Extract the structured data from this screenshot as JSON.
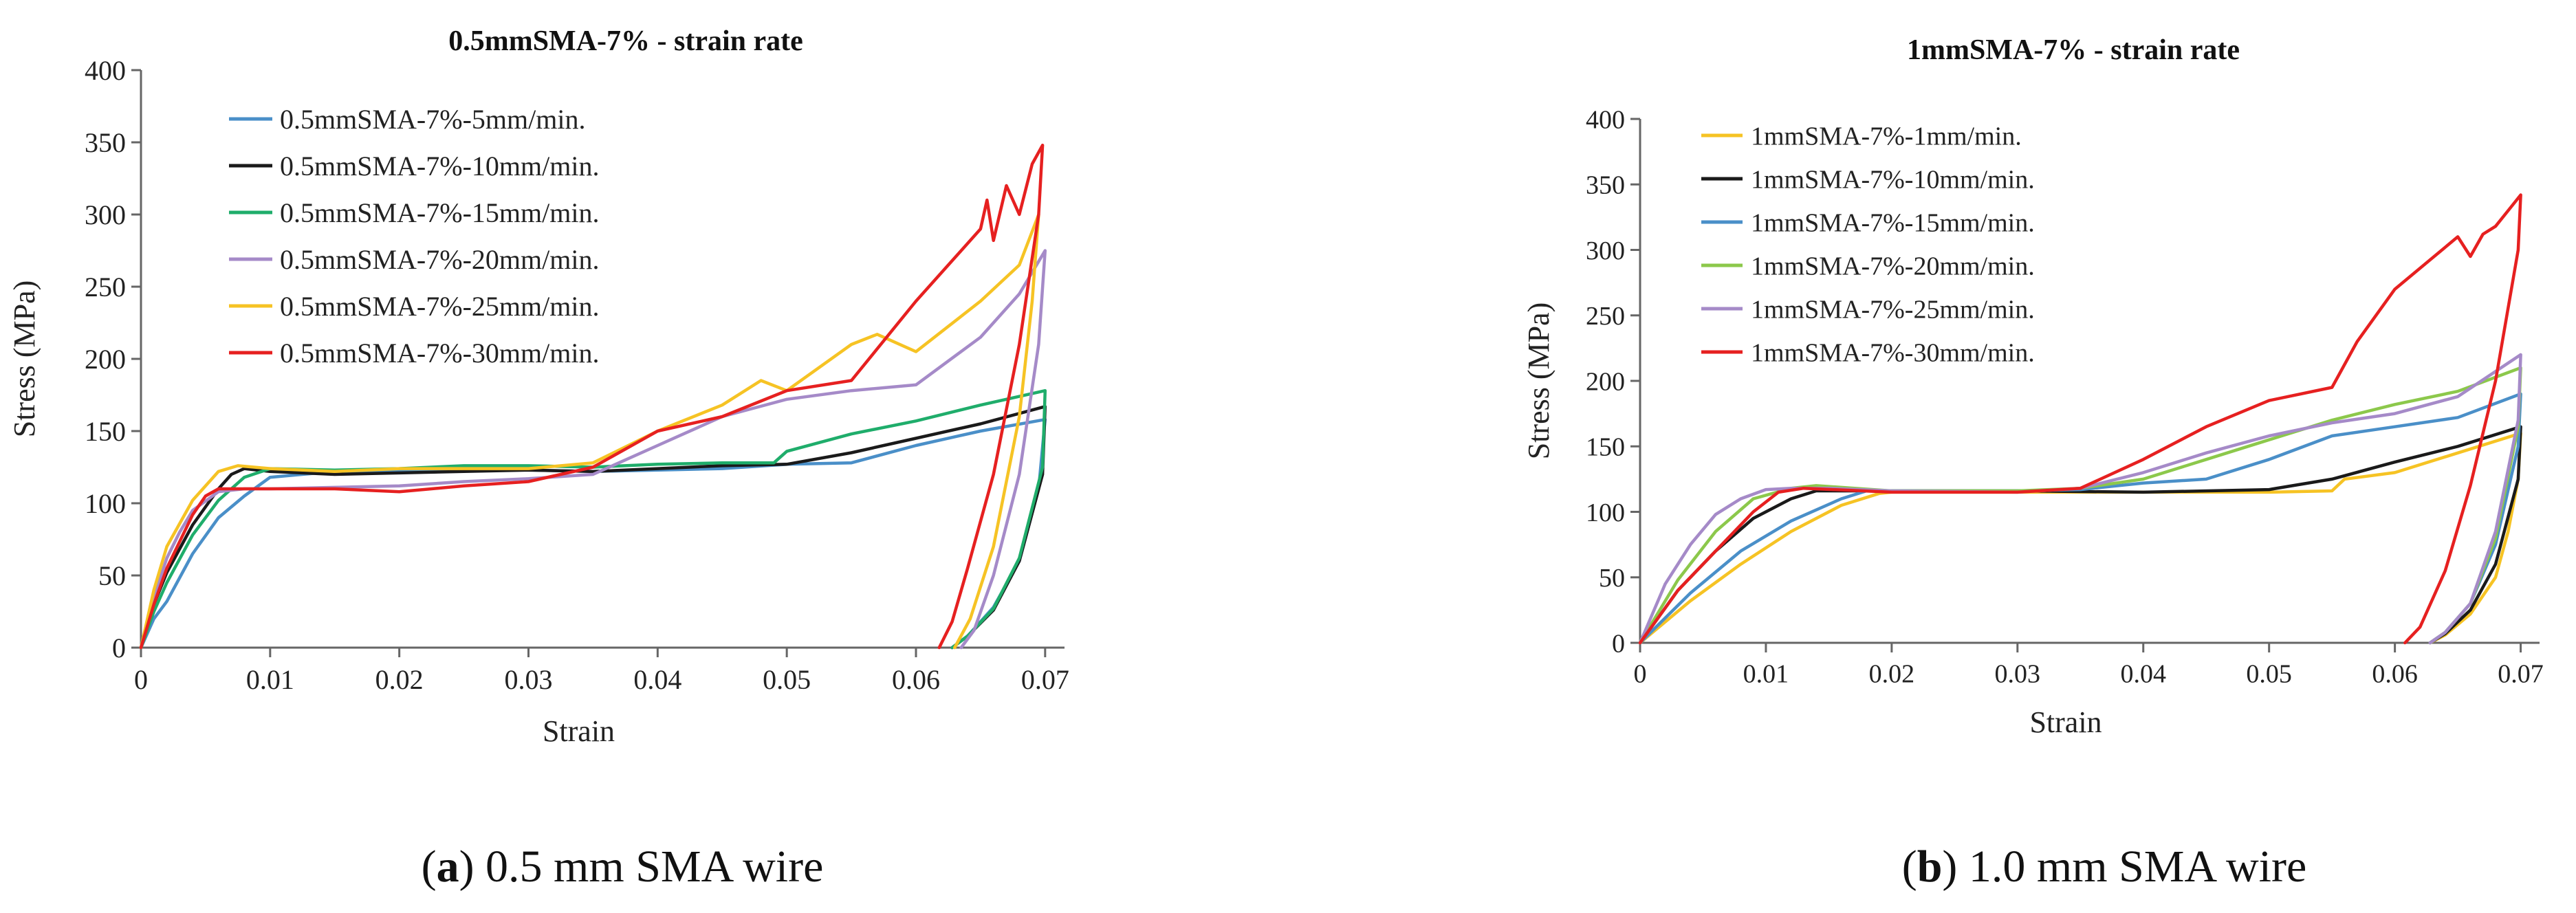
{
  "chart_data": [
    {
      "type": "line",
      "title": "0.5mmSMA-7% - strain rate",
      "xlabel": "Strain",
      "ylabel": "Stress (MPa)",
      "xlim": [
        0,
        0.0715
      ],
      "ylim": [
        0,
        400
      ],
      "xticks": [
        "0",
        "0.01",
        "0.02",
        "0.03",
        "0.04",
        "0.05",
        "0.06",
        "0.07"
      ],
      "yticks": [
        "0",
        "50",
        "100",
        "150",
        "200",
        "250",
        "300",
        "350",
        "400"
      ],
      "legend_position": "top-left inside",
      "grid": false,
      "caption_bold": "a",
      "caption_rest": " 0.5 mm SMA wire",
      "series": [
        {
          "name": "0.5mmSMA-7%-5mm/min.",
          "color": "#4a8fc8",
          "x": [
            0,
            0.001,
            0.002,
            0.004,
            0.006,
            0.008,
            0.01,
            0.015,
            0.02,
            0.025,
            0.03,
            0.035,
            0.04,
            0.045,
            0.05,
            0.055,
            0.06,
            0.065,
            0.07,
            0.0695,
            0.068,
            0.066,
            0.064,
            0.0628
          ],
          "y": [
            0,
            20,
            32,
            65,
            90,
            105,
            118,
            122,
            123,
            124,
            123,
            122,
            123,
            124,
            127,
            128,
            140,
            150,
            158,
            110,
            60,
            28,
            8,
            0
          ]
        },
        {
          "name": "0.5mmSMA-7%-10mm/min.",
          "color": "#1a1a1a",
          "x": [
            0,
            0.001,
            0.002,
            0.004,
            0.006,
            0.007,
            0.008,
            0.01,
            0.015,
            0.02,
            0.025,
            0.03,
            0.035,
            0.04,
            0.045,
            0.05,
            0.055,
            0.06,
            0.065,
            0.07,
            0.0698,
            0.068,
            0.066,
            0.064,
            0.0628
          ],
          "y": [
            0,
            30,
            52,
            85,
            110,
            120,
            124,
            122,
            120,
            121,
            122,
            123,
            122,
            124,
            126,
            127,
            135,
            145,
            155,
            167,
            120,
            60,
            26,
            8,
            0
          ]
        },
        {
          "name": "0.5mmSMA-7%-15mm/min.",
          "color": "#1fad6b",
          "x": [
            0,
            0.001,
            0.002,
            0.004,
            0.006,
            0.008,
            0.01,
            0.015,
            0.02,
            0.025,
            0.03,
            0.035,
            0.04,
            0.045,
            0.049,
            0.05,
            0.055,
            0.06,
            0.065,
            0.07,
            0.0698,
            0.068,
            0.066,
            0.064,
            0.0628
          ],
          "y": [
            0,
            25,
            45,
            78,
            102,
            118,
            124,
            123,
            124,
            126,
            126,
            125,
            127,
            128,
            128,
            136,
            148,
            157,
            168,
            178,
            125,
            62,
            27,
            8,
            0
          ]
        },
        {
          "name": "0.5mmSMA-7%-20mm/min.",
          "color": "#a58ac8",
          "x": [
            0,
            0.001,
            0.002,
            0.003,
            0.004,
            0.006,
            0.008,
            0.01,
            0.015,
            0.02,
            0.025,
            0.03,
            0.035,
            0.04,
            0.045,
            0.05,
            0.055,
            0.06,
            0.065,
            0.068,
            0.07,
            0.0695,
            0.068,
            0.066,
            0.0645,
            0.0635
          ],
          "y": [
            0,
            35,
            62,
            80,
            95,
            108,
            110,
            110,
            111,
            112,
            115,
            117,
            120,
            140,
            160,
            172,
            178,
            182,
            215,
            245,
            275,
            210,
            120,
            50,
            12,
            0
          ]
        },
        {
          "name": "0.5mmSMA-7%-25mm/min.",
          "color": "#f6c324",
          "x": [
            0,
            0.001,
            0.002,
            0.004,
            0.006,
            0.0075,
            0.01,
            0.015,
            0.02,
            0.025,
            0.03,
            0.035,
            0.04,
            0.045,
            0.048,
            0.05,
            0.055,
            0.057,
            0.06,
            0.065,
            0.068,
            0.0695,
            0.069,
            0.068,
            0.066,
            0.0642,
            0.063
          ],
          "y": [
            0,
            40,
            70,
            102,
            122,
            126,
            124,
            122,
            124,
            124,
            124,
            128,
            150,
            168,
            185,
            178,
            210,
            217,
            205,
            240,
            265,
            300,
            240,
            160,
            70,
            20,
            0
          ]
        },
        {
          "name": "0.5mmSMA-7%-30mm/min.",
          "color": "#e62020",
          "x": [
            0,
            0.001,
            0.002,
            0.004,
            0.005,
            0.006,
            0.01,
            0.015,
            0.02,
            0.025,
            0.03,
            0.035,
            0.04,
            0.045,
            0.05,
            0.055,
            0.06,
            0.065,
            0.0655,
            0.066,
            0.067,
            0.068,
            0.069,
            0.0698,
            0.0695,
            0.068,
            0.066,
            0.064,
            0.0628,
            0.0618
          ],
          "y": [
            0,
            30,
            55,
            92,
            105,
            110,
            110,
            110,
            108,
            112,
            115,
            125,
            150,
            160,
            178,
            185,
            240,
            290,
            310,
            282,
            320,
            300,
            335,
            348,
            300,
            210,
            120,
            55,
            18,
            0
          ]
        }
      ]
    },
    {
      "type": "line",
      "title": "1mmSMA-7% - strain rate",
      "xlabel": "Strain",
      "ylabel": "Stress (MPa)",
      "xlim": [
        0,
        0.0715
      ],
      "ylim": [
        0,
        400
      ],
      "xticks": [
        "0",
        "0.01",
        "0.02",
        "0.03",
        "0.04",
        "0.05",
        "0.06",
        "0.07"
      ],
      "yticks": [
        "0",
        "50",
        "100",
        "150",
        "200",
        "250",
        "300",
        "350",
        "400"
      ],
      "legend_position": "top-left inside",
      "grid": false,
      "caption_bold": "b",
      "caption_rest": " 1.0 mm SMA wire",
      "series": [
        {
          "name": "1mmSMA-7%-1mm/min.",
          "color": "#f6c324",
          "x": [
            0,
            0.004,
            0.008,
            0.012,
            0.016,
            0.019,
            0.02,
            0.03,
            0.04,
            0.05,
            0.055,
            0.056,
            0.06,
            0.065,
            0.07,
            0.0698,
            0.069,
            0.068,
            0.066,
            0.064,
            0.0628
          ],
          "y": [
            0,
            32,
            60,
            85,
            105,
            114,
            115,
            115,
            115,
            115,
            116,
            125,
            130,
            145,
            160,
            125,
            85,
            50,
            22,
            6,
            0
          ]
        },
        {
          "name": "1mmSMA-7%-10mm/min.",
          "color": "#1a1a1a",
          "x": [
            0,
            0.003,
            0.006,
            0.009,
            0.012,
            0.014,
            0.02,
            0.03,
            0.04,
            0.05,
            0.055,
            0.06,
            0.065,
            0.07,
            0.0698,
            0.068,
            0.066,
            0.064,
            0.0628
          ],
          "y": [
            0,
            40,
            70,
            95,
            110,
            116,
            116,
            116,
            115,
            117,
            125,
            138,
            150,
            165,
            125,
            60,
            25,
            7,
            0
          ]
        },
        {
          "name": "1mmSMA-7%-15mm/min.",
          "color": "#4a8fc8",
          "x": [
            0,
            0.004,
            0.008,
            0.012,
            0.016,
            0.018,
            0.02,
            0.03,
            0.035,
            0.04,
            0.045,
            0.05,
            0.055,
            0.06,
            0.065,
            0.07,
            0.0698,
            0.068,
            0.066,
            0.064,
            0.0628
          ],
          "y": [
            0,
            38,
            70,
            93,
            110,
            116,
            116,
            116,
            117,
            122,
            125,
            140,
            158,
            165,
            172,
            190,
            150,
            75,
            30,
            8,
            0
          ]
        },
        {
          "name": "1mmSMA-7%-20mm/min.",
          "color": "#8cc84b",
          "x": [
            0,
            0.003,
            0.006,
            0.009,
            0.012,
            0.014,
            0.02,
            0.03,
            0.035,
            0.04,
            0.045,
            0.05,
            0.055,
            0.06,
            0.065,
            0.07,
            0.0698,
            0.068,
            0.066,
            0.064,
            0.0628
          ],
          "y": [
            0,
            48,
            85,
            110,
            118,
            120,
            116,
            116,
            118,
            125,
            140,
            155,
            170,
            182,
            192,
            210,
            165,
            80,
            30,
            8,
            0
          ]
        },
        {
          "name": "1mmSMA-7%-25mm/min.",
          "color": "#a58ac8",
          "x": [
            0,
            0.002,
            0.004,
            0.006,
            0.008,
            0.01,
            0.012,
            0.015,
            0.02,
            0.03,
            0.035,
            0.04,
            0.045,
            0.05,
            0.055,
            0.06,
            0.065,
            0.07,
            0.0698,
            0.068,
            0.066,
            0.064,
            0.0628
          ],
          "y": [
            0,
            45,
            75,
            98,
            110,
            117,
            118,
            118,
            116,
            115,
            118,
            130,
            145,
            158,
            168,
            175,
            188,
            220,
            170,
            85,
            30,
            8,
            0
          ]
        },
        {
          "name": "1mmSMA-7%-30mm/min.",
          "color": "#e62020",
          "x": [
            0,
            0.003,
            0.006,
            0.009,
            0.011,
            0.013,
            0.02,
            0.03,
            0.035,
            0.04,
            0.045,
            0.05,
            0.055,
            0.057,
            0.06,
            0.065,
            0.066,
            0.067,
            0.068,
            0.069,
            0.07,
            0.0698,
            0.068,
            0.066,
            0.064,
            0.062,
            0.0608
          ],
          "y": [
            0,
            40,
            70,
            100,
            115,
            118,
            115,
            115,
            118,
            140,
            165,
            185,
            195,
            230,
            270,
            310,
            295,
            312,
            318,
            330,
            342,
            300,
            200,
            120,
            55,
            12,
            0
          ]
        }
      ]
    }
  ]
}
